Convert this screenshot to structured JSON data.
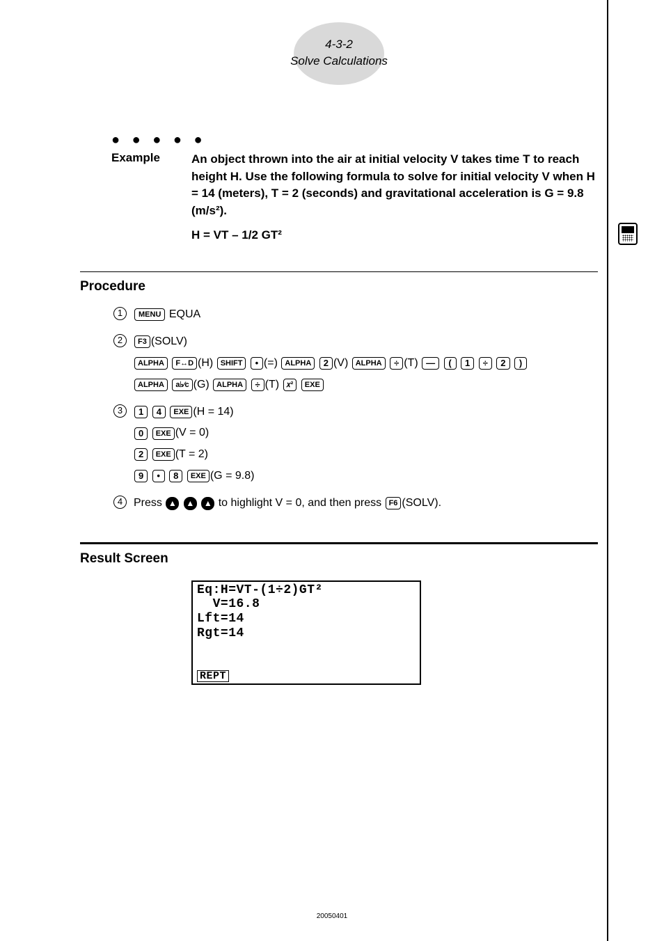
{
  "header": {
    "page_ref": "4-3-2",
    "title": "Solve Calculations"
  },
  "example": {
    "label": "Example",
    "text": "An object thrown into the air at initial velocity V takes time T to reach height H. Use the following formula to solve for initial velocity V when H = 14 (meters), T = 2 (seconds) and gravitational acceleration is G = 9.8 (m/s²).",
    "formula": "H = VT – 1/2 GT²"
  },
  "procedure": {
    "title": "Procedure",
    "step1_text": "EQUA",
    "step2_f3": "(SOLV)",
    "step2_h": "(H)",
    "step2_eq": "(=)",
    "step2_v": "(V)",
    "step2_t": "(T)",
    "step2_g": "(G)",
    "step3_h14": "(H = 14)",
    "step3_v0": "(V = 0)",
    "step3_t2": "(T = 2)",
    "step3_g98": "(G = 9.8)",
    "step4_text_a": "Press",
    "step4_text_b": "to highlight V = 0, and then press",
    "step4_text_c": "(SOLV)."
  },
  "result": {
    "title": "Result Screen",
    "line1": "Eq:H=VT-(1÷2)GT²",
    "line2": "  V=16.8",
    "line3": "Lft=14",
    "line4": "Rgt=14",
    "footer": "REPT"
  },
  "keys": {
    "menu": "MENU",
    "f3": "F3",
    "f6": "F6",
    "alpha": "ALPHA",
    "shift": "SHIFT",
    "fd": "F↔D",
    "dot": "•",
    "exe": "EXE",
    "minus": "—",
    "plus": "+",
    "div": "÷",
    "lparen": "(",
    "rparen": ")",
    "xsq": "𝑥²",
    "ab": "a♭⁄c",
    "k0": "0",
    "k1": "1",
    "k2": "2",
    "k4": "4",
    "k8": "8",
    "k9": "9",
    "up": "▲"
  },
  "footer_code": "20050401"
}
